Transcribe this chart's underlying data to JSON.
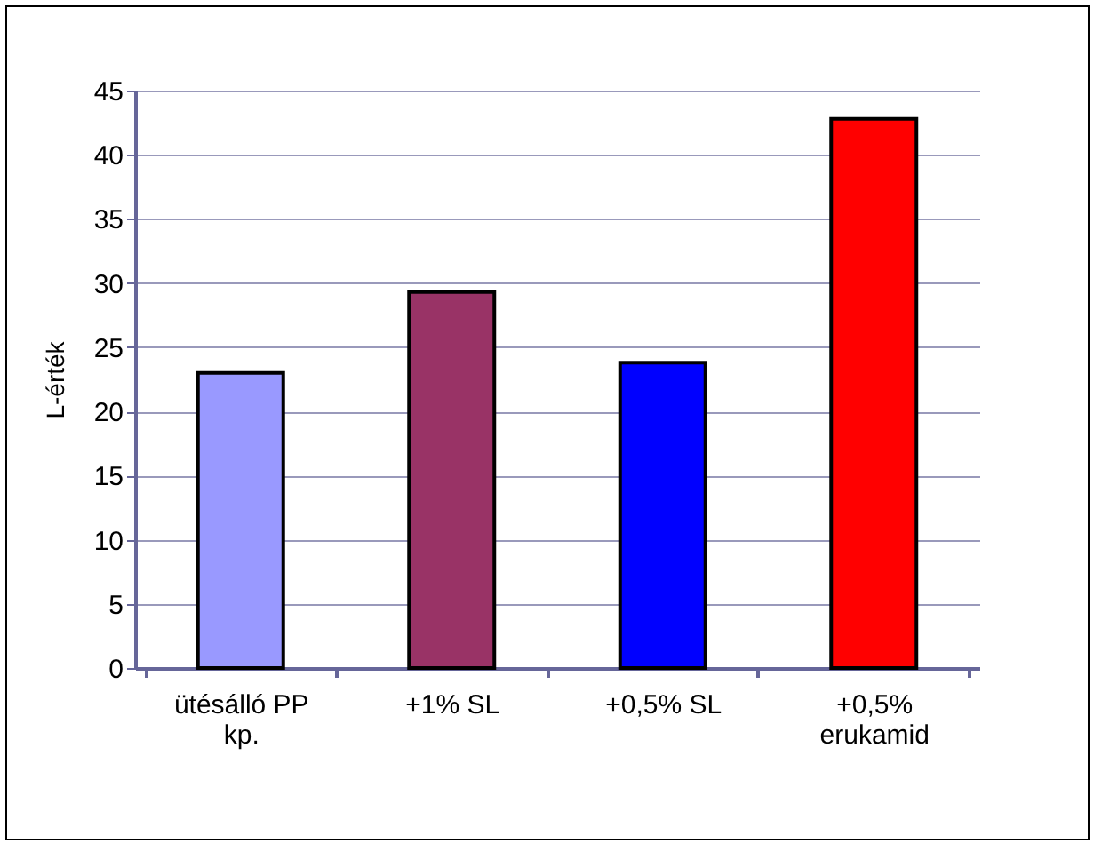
{
  "chart_data": {
    "type": "bar",
    "ylabel": "L-érték",
    "categories": [
      "ütésálló PP kp.",
      "+1% SL",
      "+0,5% SL",
      "+0,5% erukamid"
    ],
    "values": [
      23,
      29.3,
      23.8,
      42.8
    ],
    "colors": [
      "#9999ff",
      "#993366",
      "#0000ff",
      "#ff0000"
    ],
    "ylim": [
      0,
      45
    ],
    "yticks": [
      0,
      5,
      10,
      15,
      20,
      25,
      30,
      35,
      40,
      45
    ],
    "grid": "y"
  }
}
